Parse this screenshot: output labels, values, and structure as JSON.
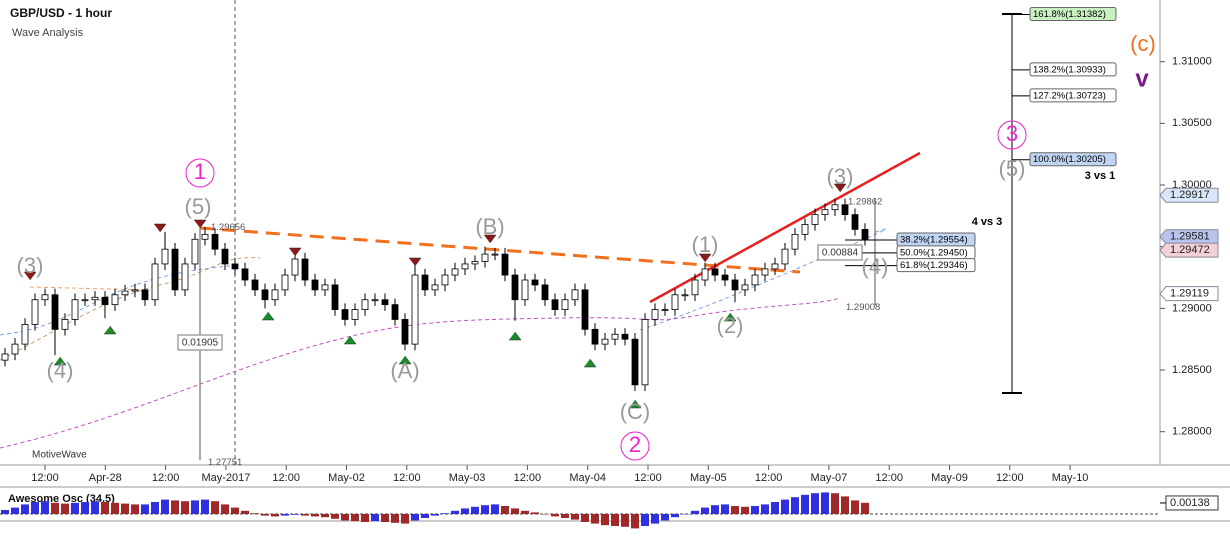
{
  "chart_data": {
    "type": "candlestick",
    "title": "GBP/USD - 1 hour",
    "subtitle": "Wave Analysis",
    "watermark": "MotiveWave",
    "open": [
      1.2858,
      1.2863,
      1.2871,
      1.2887,
      1.2907,
      1.2911,
      1.2883,
      1.2891,
      1.2907,
      1.2907,
      1.2909,
      1.2903,
      1.2911,
      1.2914,
      1.2915,
      1.2907,
      1.2936,
      1.2948,
      1.2915,
      1.2936,
      1.2956,
      1.296,
      1.2948,
      1.2936,
      1.2932,
      1.2923,
      1.2915,
      1.2907,
      1.2915,
      1.2927,
      1.294,
      1.2923,
      1.2915,
      1.2919,
      1.2899,
      1.2891,
      1.2899,
      1.2907,
      1.2907,
      1.2903,
      1.2891,
      1.2871,
      1.2927,
      1.2915,
      1.2919,
      1.2927,
      1.2932,
      1.2936,
      1.2938,
      1.2944,
      1.2944,
      1.2927,
      1.2907,
      1.2923,
      1.2919,
      1.2907,
      1.2899,
      1.2907,
      1.2915,
      1.2883,
      1.2871,
      1.2875,
      1.2879,
      1.2875,
      1.2838,
      1.2891,
      1.2899,
      1.2899,
      1.2911,
      1.2911,
      1.2923,
      1.2932,
      1.2927,
      1.2923,
      1.2915,
      1.2919,
      1.2927,
      1.2932,
      1.2936,
      1.2948,
      1.296,
      1.2968,
      1.2976,
      1.298,
      1.2984,
      1.2976,
      1.2964
    ],
    "high": [
      1.2868,
      1.2876,
      1.2892,
      1.2912,
      1.2916,
      1.2916,
      1.2896,
      1.2912,
      1.2912,
      1.2914,
      1.2914,
      1.2916,
      1.2919,
      1.292,
      1.292,
      1.2941,
      1.2962,
      1.2953,
      1.2941,
      1.2961,
      1.2966,
      1.2965,
      1.2953,
      1.2941,
      1.2937,
      1.2928,
      1.292,
      1.292,
      1.2932,
      1.2948,
      1.2945,
      1.2928,
      1.2924,
      1.2924,
      1.2904,
      1.2904,
      1.2912,
      1.2912,
      1.2912,
      1.2908,
      1.2896,
      1.2935,
      1.2932,
      1.2924,
      1.2932,
      1.2937,
      1.2941,
      1.2943,
      1.295,
      1.2949,
      1.2949,
      1.2932,
      1.2928,
      1.2928,
      1.2924,
      1.2912,
      1.2912,
      1.292,
      1.292,
      1.2888,
      1.288,
      1.2884,
      1.2884,
      1.288,
      1.2896,
      1.2904,
      1.2904,
      1.2916,
      1.2916,
      1.2928,
      1.2937,
      1.2937,
      1.2932,
      1.2928,
      1.2924,
      1.2932,
      1.2937,
      1.2941,
      1.2953,
      1.2965,
      1.2973,
      1.2981,
      1.2985,
      1.2989,
      1.2989,
      1.2981,
      1.2969
    ],
    "low": [
      1.2853,
      1.2858,
      1.2866,
      1.2882,
      1.2902,
      1.2862,
      1.2878,
      1.2886,
      1.2902,
      1.2902,
      1.2892,
      1.2898,
      1.2906,
      1.2909,
      1.2902,
      1.2902,
      1.2931,
      1.291,
      1.291,
      1.2931,
      1.2951,
      1.2943,
      1.2931,
      1.2927,
      1.2918,
      1.291,
      1.29,
      1.2902,
      1.291,
      1.2922,
      1.2918,
      1.291,
      1.291,
      1.2894,
      1.2886,
      1.2886,
      1.2894,
      1.2902,
      1.2898,
      1.2886,
      1.2866,
      1.2866,
      1.291,
      1.291,
      1.2914,
      1.2922,
      1.2927,
      1.2931,
      1.2933,
      1.2939,
      1.2922,
      1.289,
      1.2902,
      1.2914,
      1.2902,
      1.2894,
      1.2894,
      1.2902,
      1.2878,
      1.2866,
      1.2866,
      1.287,
      1.287,
      1.2833,
      1.2833,
      1.2886,
      1.2894,
      1.2894,
      1.2906,
      1.2906,
      1.2918,
      1.2922,
      1.2918,
      1.2905,
      1.291,
      1.2914,
      1.2922,
      1.2927,
      1.2931,
      1.2943,
      1.2955,
      1.2963,
      1.2971,
      1.2975,
      1.2971,
      1.2959,
      1.2951
    ],
    "close": [
      1.2863,
      1.2871,
      1.2887,
      1.2907,
      1.2911,
      1.2883,
      1.2891,
      1.2907,
      1.2907,
      1.2909,
      1.2903,
      1.2911,
      1.2914,
      1.2915,
      1.2907,
      1.2936,
      1.2948,
      1.2915,
      1.2936,
      1.2956,
      1.296,
      1.2948,
      1.2936,
      1.2932,
      1.2923,
      1.2915,
      1.2907,
      1.2915,
      1.2927,
      1.294,
      1.2923,
      1.2915,
      1.2919,
      1.2899,
      1.2891,
      1.2899,
      1.2907,
      1.2907,
      1.2903,
      1.2891,
      1.2871,
      1.2927,
      1.2915,
      1.2919,
      1.2927,
      1.2932,
      1.2936,
      1.2938,
      1.2944,
      1.2944,
      1.2927,
      1.2907,
      1.2923,
      1.2919,
      1.2907,
      1.2899,
      1.2907,
      1.2915,
      1.2883,
      1.2871,
      1.2875,
      1.2879,
      1.2875,
      1.2838,
      1.2891,
      1.2899,
      1.2899,
      1.2911,
      1.2911,
      1.2923,
      1.2932,
      1.2927,
      1.2923,
      1.2915,
      1.2919,
      1.2927,
      1.2932,
      1.2936,
      1.2948,
      1.296,
      1.2968,
      1.2976,
      1.298,
      1.2984,
      1.2976,
      1.2964,
      1.2956
    ],
    "ylim": [
      1.2773,
      1.315
    ],
    "yticks": [
      {
        "value": 1.28,
        "label": "1.28000"
      },
      {
        "value": 1.285,
        "label": "1.28500"
      },
      {
        "value": 1.29,
        "label": "1.29000"
      },
      {
        "value": 1.295,
        "label": "1.29500"
      },
      {
        "value": 1.3,
        "label": "1.30000"
      },
      {
        "value": 1.305,
        "label": "1.30500"
      },
      {
        "value": 1.31,
        "label": "1.31000"
      }
    ],
    "x_labels": [
      "12:00",
      "Apr-28",
      "12:00",
      "May-2017",
      "12:00",
      "May-02",
      "12:00",
      "May-03",
      "12:00",
      "May-04",
      "12:00",
      "May-05",
      "12:00",
      "May-07",
      "12:00",
      "May-09",
      "12:00",
      "May-10"
    ],
    "fib_levels": [
      {
        "value": 1.31382,
        "label": "161.8%(1.31382)",
        "color": "#c8f0c0"
      },
      {
        "value": 1.30933,
        "label": "138.2%(1.30933)",
        "color": "#ffffff"
      },
      {
        "value": 1.30723,
        "label": "127.2%(1.30723)",
        "color": "#ffffff"
      },
      {
        "value": 1.30205,
        "label": "100.0%(1.30205)",
        "color": "#c0d4f4"
      },
      {
        "value": 1.29554,
        "label": "38.2%(1.29554)",
        "color": "#c0d4f4"
      },
      {
        "value": 1.2945,
        "label": "50.0%(1.29450)",
        "color": "#ffffff"
      },
      {
        "value": 1.29346,
        "label": "61.8%(1.29346)",
        "color": "#ffffff"
      }
    ],
    "price_markers": [
      {
        "value": 1.29917,
        "label": "1.29917",
        "color": "#d8e8f8"
      },
      {
        "value": 1.29581,
        "label": "1.29581",
        "color": "#b8c4ec"
      },
      {
        "value": 1.29472,
        "label": "1.29472",
        "color": "#f4d0d8"
      },
      {
        "value": 1.29119,
        "label": "1.29119",
        "color": "#ffffff"
      }
    ],
    "price_notes": [
      {
        "value": 1.29656,
        "label": "1.29656"
      },
      {
        "value": 1.27751,
        "label": "1.27751"
      },
      {
        "value": 1.29862,
        "label": "1.29862"
      },
      {
        "value": 1.29008,
        "label": "1.29008"
      }
    ],
    "measures": [
      "0.01905",
      "0.00884"
    ],
    "annotations": [
      {
        "text": "(3)",
        "color": "#999999"
      },
      {
        "text": "(4)",
        "color": "#999999"
      },
      {
        "text": "(5)",
        "color": "#999999"
      },
      {
        "text": "1",
        "color": "#ee22cc",
        "circled": true
      },
      {
        "text": "(A)",
        "color": "#999999"
      },
      {
        "text": "(B)",
        "color": "#999999"
      },
      {
        "text": "(C)",
        "color": "#999999"
      },
      {
        "text": "2",
        "color": "#ee22cc",
        "circled": true
      },
      {
        "text": "(1)",
        "color": "#999999"
      },
      {
        "text": "(2)",
        "color": "#999999"
      },
      {
        "text": "(3)",
        "color": "#999999"
      },
      {
        "text": "(4)",
        "color": "#999999"
      },
      {
        "text": "3",
        "color": "#ee22cc",
        "circled": true
      },
      {
        "text": "(5)",
        "color": "#999999"
      },
      {
        "text": "(c)",
        "color": "#f07020"
      },
      {
        "text": "v",
        "color": "#7a1a8a"
      },
      {
        "text": "3 vs 1",
        "color": "#000000"
      },
      {
        "text": "4 vs 3",
        "color": "#000000"
      }
    ],
    "oscillator": {
      "name": "Awesome Osc (34,5)",
      "values": [
        0.0005,
        0.0008,
        0.0012,
        0.0015,
        0.0016,
        0.0014,
        0.0013,
        0.0014,
        0.0015,
        0.0016,
        0.0015,
        0.0014,
        0.0013,
        0.0012,
        0.0012,
        0.0015,
        0.0018,
        0.0017,
        0.0016,
        0.0017,
        0.0018,
        0.0016,
        0.0012,
        0.0008,
        0.0004,
        0.0001,
        -0.0002,
        -0.0003,
        -0.0002,
        -0.0001,
        -0.0002,
        -0.0003,
        -0.0004,
        -0.0006,
        -0.0008,
        -0.0009,
        -0.001,
        -0.0009,
        -0.001,
        -0.0011,
        -0.0012,
        -0.0008,
        -0.0005,
        -0.0002,
        0.0001,
        0.0004,
        0.0007,
        0.0009,
        0.0011,
        0.0012,
        0.001,
        0.0007,
        0.0004,
        0.0002,
        0,
        -0.0003,
        -0.0005,
        -0.0007,
        -0.001,
        -0.0012,
        -0.0014,
        -0.0015,
        -0.0016,
        -0.0018,
        -0.0015,
        -0.0012,
        -0.0008,
        -0.0004,
        0,
        0.0004,
        0.0008,
        0.0011,
        0.0012,
        0.001,
        0.0009,
        0.001,
        0.0012,
        0.0015,
        0.0018,
        0.0021,
        0.0024,
        0.0026,
        0.0027,
        0.0026,
        0.0022,
        0.0017,
        0.0014
      ],
      "ylim": [
        -0.002,
        0.003
      ],
      "last": {
        "value": 0.00138,
        "label": "0.00138"
      },
      "rise_color": "#3030e0",
      "fall_color": "#a02828"
    }
  }
}
